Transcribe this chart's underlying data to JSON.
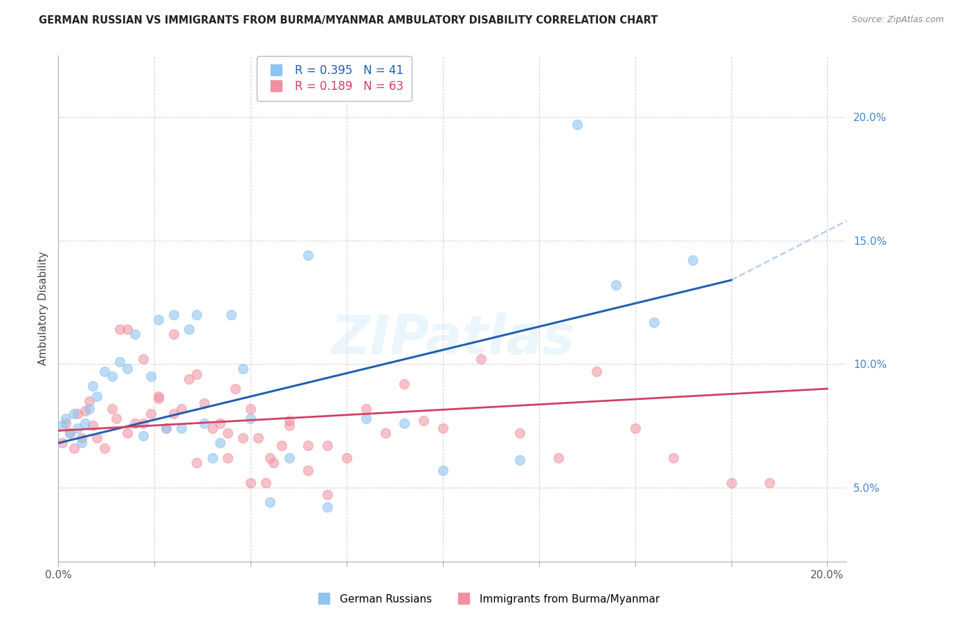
{
  "title": "GERMAN RUSSIAN VS IMMIGRANTS FROM BURMA/MYANMAR AMBULATORY DISABILITY CORRELATION CHART",
  "source": "Source: ZipAtlas.com",
  "ylabel": "Ambulatory Disability",
  "xlim": [
    0.0,
    0.205
  ],
  "ylim": [
    0.02,
    0.225
  ],
  "blue_R": 0.395,
  "blue_N": 41,
  "pink_R": 0.189,
  "pink_N": 63,
  "blue_color": "#90C4F0",
  "pink_color": "#F090A0",
  "blue_line_color": "#2060B0",
  "pink_line_color": "#D04060",
  "dashed_color": "#A8C8F0",
  "grid_color": "#CCCCCC",
  "y_right_color": "#4488CC",
  "blue_scatter_x": [
    0.001,
    0.002,
    0.003,
    0.004,
    0.005,
    0.006,
    0.007,
    0.008,
    0.009,
    0.01,
    0.012,
    0.014,
    0.016,
    0.018,
    0.02,
    0.022,
    0.024,
    0.026,
    0.028,
    0.03,
    0.032,
    0.034,
    0.036,
    0.038,
    0.04,
    0.042,
    0.045,
    0.048,
    0.05,
    0.055,
    0.06,
    0.065,
    0.07,
    0.08,
    0.09,
    0.1,
    0.12,
    0.135,
    0.145,
    0.155,
    0.165
  ],
  "blue_scatter_y": [
    0.075,
    0.078,
    0.072,
    0.08,
    0.074,
    0.068,
    0.076,
    0.082,
    0.091,
    0.087,
    0.097,
    0.095,
    0.101,
    0.098,
    0.112,
    0.071,
    0.095,
    0.118,
    0.074,
    0.12,
    0.074,
    0.114,
    0.12,
    0.076,
    0.062,
    0.068,
    0.12,
    0.098,
    0.078,
    0.044,
    0.062,
    0.144,
    0.042,
    0.078,
    0.076,
    0.057,
    0.061,
    0.197,
    0.132,
    0.117,
    0.142
  ],
  "pink_scatter_x": [
    0.001,
    0.002,
    0.003,
    0.004,
    0.005,
    0.006,
    0.007,
    0.008,
    0.009,
    0.01,
    0.012,
    0.014,
    0.016,
    0.018,
    0.02,
    0.022,
    0.024,
    0.026,
    0.028,
    0.03,
    0.032,
    0.034,
    0.036,
    0.038,
    0.04,
    0.042,
    0.044,
    0.046,
    0.048,
    0.05,
    0.052,
    0.054,
    0.056,
    0.058,
    0.06,
    0.065,
    0.07,
    0.075,
    0.08,
    0.085,
    0.09,
    0.095,
    0.1,
    0.11,
    0.12,
    0.13,
    0.14,
    0.15,
    0.16,
    0.175,
    0.185,
    0.015,
    0.018,
    0.022,
    0.026,
    0.03,
    0.036,
    0.044,
    0.05,
    0.055,
    0.06,
    0.065,
    0.07
  ],
  "pink_scatter_y": [
    0.068,
    0.076,
    0.072,
    0.066,
    0.08,
    0.07,
    0.081,
    0.085,
    0.075,
    0.07,
    0.066,
    0.082,
    0.114,
    0.114,
    0.076,
    0.102,
    0.08,
    0.086,
    0.074,
    0.112,
    0.082,
    0.094,
    0.096,
    0.084,
    0.074,
    0.076,
    0.072,
    0.09,
    0.07,
    0.082,
    0.07,
    0.052,
    0.06,
    0.067,
    0.077,
    0.067,
    0.067,
    0.062,
    0.082,
    0.072,
    0.092,
    0.077,
    0.074,
    0.102,
    0.072,
    0.062,
    0.097,
    0.074,
    0.062,
    0.052,
    0.052,
    0.078,
    0.072,
    0.076,
    0.087,
    0.08,
    0.06,
    0.062,
    0.052,
    0.062,
    0.075,
    0.057,
    0.047
  ],
  "blue_line_x_start": 0.0,
  "blue_line_x_solid_end": 0.175,
  "blue_line_x_dash_end": 0.205,
  "blue_line_y_start": 0.068,
  "blue_line_y_solid_end": 0.134,
  "blue_line_y_dash_end": 0.158,
  "pink_line_x_start": 0.0,
  "pink_line_x_end": 0.2,
  "pink_line_y_start": 0.073,
  "pink_line_y_end": 0.09
}
